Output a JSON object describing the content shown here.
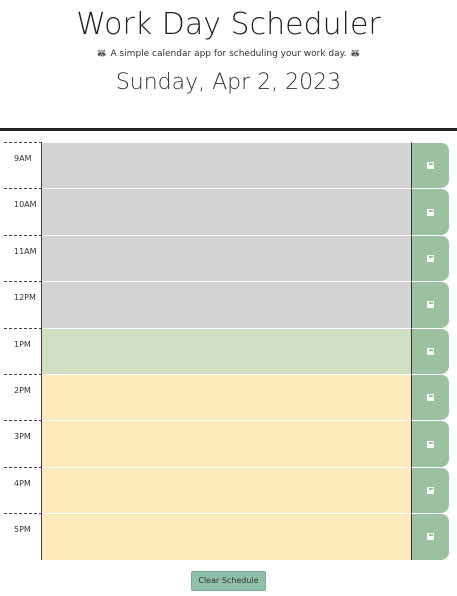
{
  "header": {
    "title": "Work Day Scheduler",
    "subtitle": "A simple calendar app for scheduling your work day.",
    "subtitle_icon": "raccoon-emoji",
    "date": "Sunday, Apr 2, 2023"
  },
  "schedule": [
    {
      "hour": "9AM",
      "status": "past"
    },
    {
      "hour": "10AM",
      "status": "past"
    },
    {
      "hour": "11AM",
      "status": "past"
    },
    {
      "hour": "12PM",
      "status": "past"
    },
    {
      "hour": "1PM",
      "status": "present"
    },
    {
      "hour": "2PM",
      "status": "future"
    },
    {
      "hour": "3PM",
      "status": "future"
    },
    {
      "hour": "4PM",
      "status": "future"
    },
    {
      "hour": "5PM",
      "status": "future"
    }
  ],
  "colors": {
    "past": "#d3d3d3",
    "present": "#d0dfc4",
    "future": "#feebbb",
    "save": "#9cc1a0"
  },
  "save_icon": "floppy-disk-icon",
  "clear_button": {
    "label": "Clear Schedule"
  }
}
